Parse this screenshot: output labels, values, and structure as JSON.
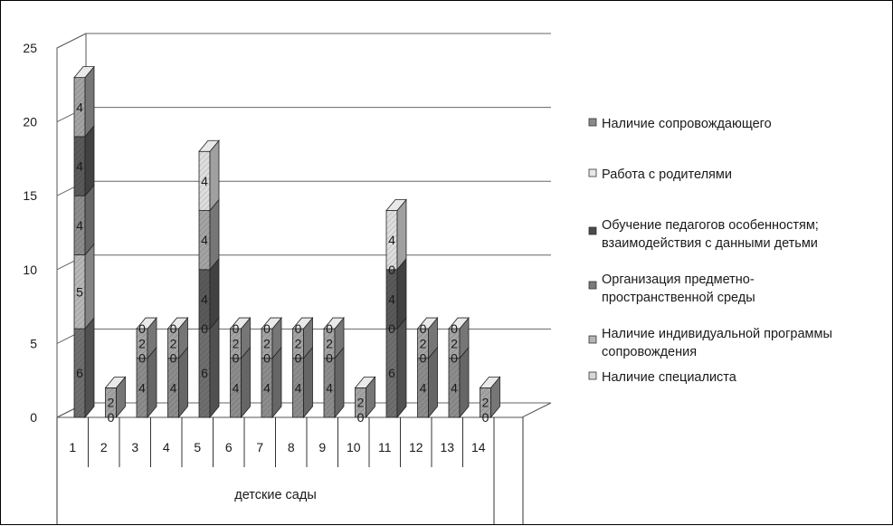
{
  "chart_data": {
    "type": "bar",
    "stacked": true,
    "three_d": true,
    "title": "",
    "xlabel": "детские сады",
    "ylabel": "",
    "ylim": [
      0,
      25
    ],
    "yticks": [
      "0",
      "5",
      "10",
      "15",
      "20",
      "25"
    ],
    "categories": [
      "1",
      "2",
      "3",
      "4",
      "5",
      "6",
      "7",
      "8",
      "9",
      "10",
      "11",
      "12",
      "13",
      "14"
    ],
    "grid": true,
    "legend_position": "right",
    "legend": [
      "Наличие сопровождающего",
      "Работа с родителями",
      "Обучение педагогов особенностям; взаимодействия с данными детьми",
      "Организация предметно-пространственной среды",
      "Наличие индивидуальной программы сопровождения",
      "Наличие специалиста"
    ],
    "legend_lines": [
      [
        "Наличие сопровождающего"
      ],
      [
        "Работа с родителями"
      ],
      [
        "Обучение педагогов особенностям;",
        "взаимодействия с данными детьми"
      ],
      [
        "Организация предметно-",
        "пространственной среды"
      ],
      [
        "Наличие индивидуальной программы",
        "сопровождения"
      ],
      [
        "Наличие специалиста"
      ]
    ],
    "legend_colors": [
      "#8a8a8a",
      "#e8e8e8",
      "#4a4a4a",
      "#7a7a7a",
      "#b5b5b5",
      "#d8d8d8"
    ],
    "segment_colors": [
      "#6f6f6f",
      "#b8b8b8",
      "#8d8d8d",
      "#5a5a5a",
      "#a4a4a4",
      "#dedede"
    ],
    "segment_label_rows": [
      [
        "6",
        "5",
        "4",
        "4",
        "4",
        null
      ],
      [
        null,
        null,
        "0",
        null,
        "2",
        null
      ],
      [
        null,
        null,
        "4",
        "0",
        "2",
        "0"
      ],
      [
        null,
        null,
        "4",
        "0",
        "2",
        "0"
      ],
      [
        "6",
        null,
        "0",
        "4",
        "4",
        "4"
      ],
      [
        null,
        null,
        "4",
        "0",
        "2",
        "0"
      ],
      [
        null,
        null,
        "4",
        "0",
        "2",
        "0"
      ],
      [
        null,
        null,
        "4",
        "0",
        "2",
        "0"
      ],
      [
        null,
        null,
        "4",
        "0",
        "2",
        "0"
      ],
      [
        null,
        null,
        "0",
        null,
        "2",
        null
      ],
      [
        "6",
        null,
        "0",
        "4",
        "0",
        "4"
      ],
      [
        null,
        null,
        "4",
        "0",
        "2",
        "0"
      ],
      [
        null,
        null,
        "4",
        "0",
        "2",
        "0"
      ],
      [
        null,
        null,
        "0",
        null,
        "2",
        null
      ]
    ],
    "series": [
      {
        "values": [
          6,
          0,
          0,
          0,
          6,
          0,
          0,
          0,
          0,
          0,
          6,
          0,
          0,
          0
        ]
      },
      {
        "values": [
          5,
          0,
          0,
          0,
          0,
          0,
          0,
          0,
          0,
          0,
          0,
          0,
          0,
          0
        ]
      },
      {
        "values": [
          4,
          0,
          4,
          4,
          0,
          4,
          4,
          4,
          4,
          0,
          0,
          4,
          4,
          0
        ]
      },
      {
        "values": [
          4,
          0,
          0,
          0,
          4,
          0,
          0,
          0,
          0,
          0,
          4,
          0,
          0,
          0
        ]
      },
      {
        "values": [
          4,
          2,
          2,
          2,
          4,
          2,
          2,
          2,
          2,
          2,
          0,
          2,
          2,
          2
        ]
      },
      {
        "values": [
          0,
          0,
          0,
          0,
          4,
          0,
          0,
          0,
          0,
          0,
          4,
          0,
          0,
          0
        ]
      }
    ],
    "totals": [
      23,
      2,
      6,
      6,
      18,
      6,
      6,
      6,
      6,
      2,
      14,
      6,
      6,
      2
    ]
  }
}
